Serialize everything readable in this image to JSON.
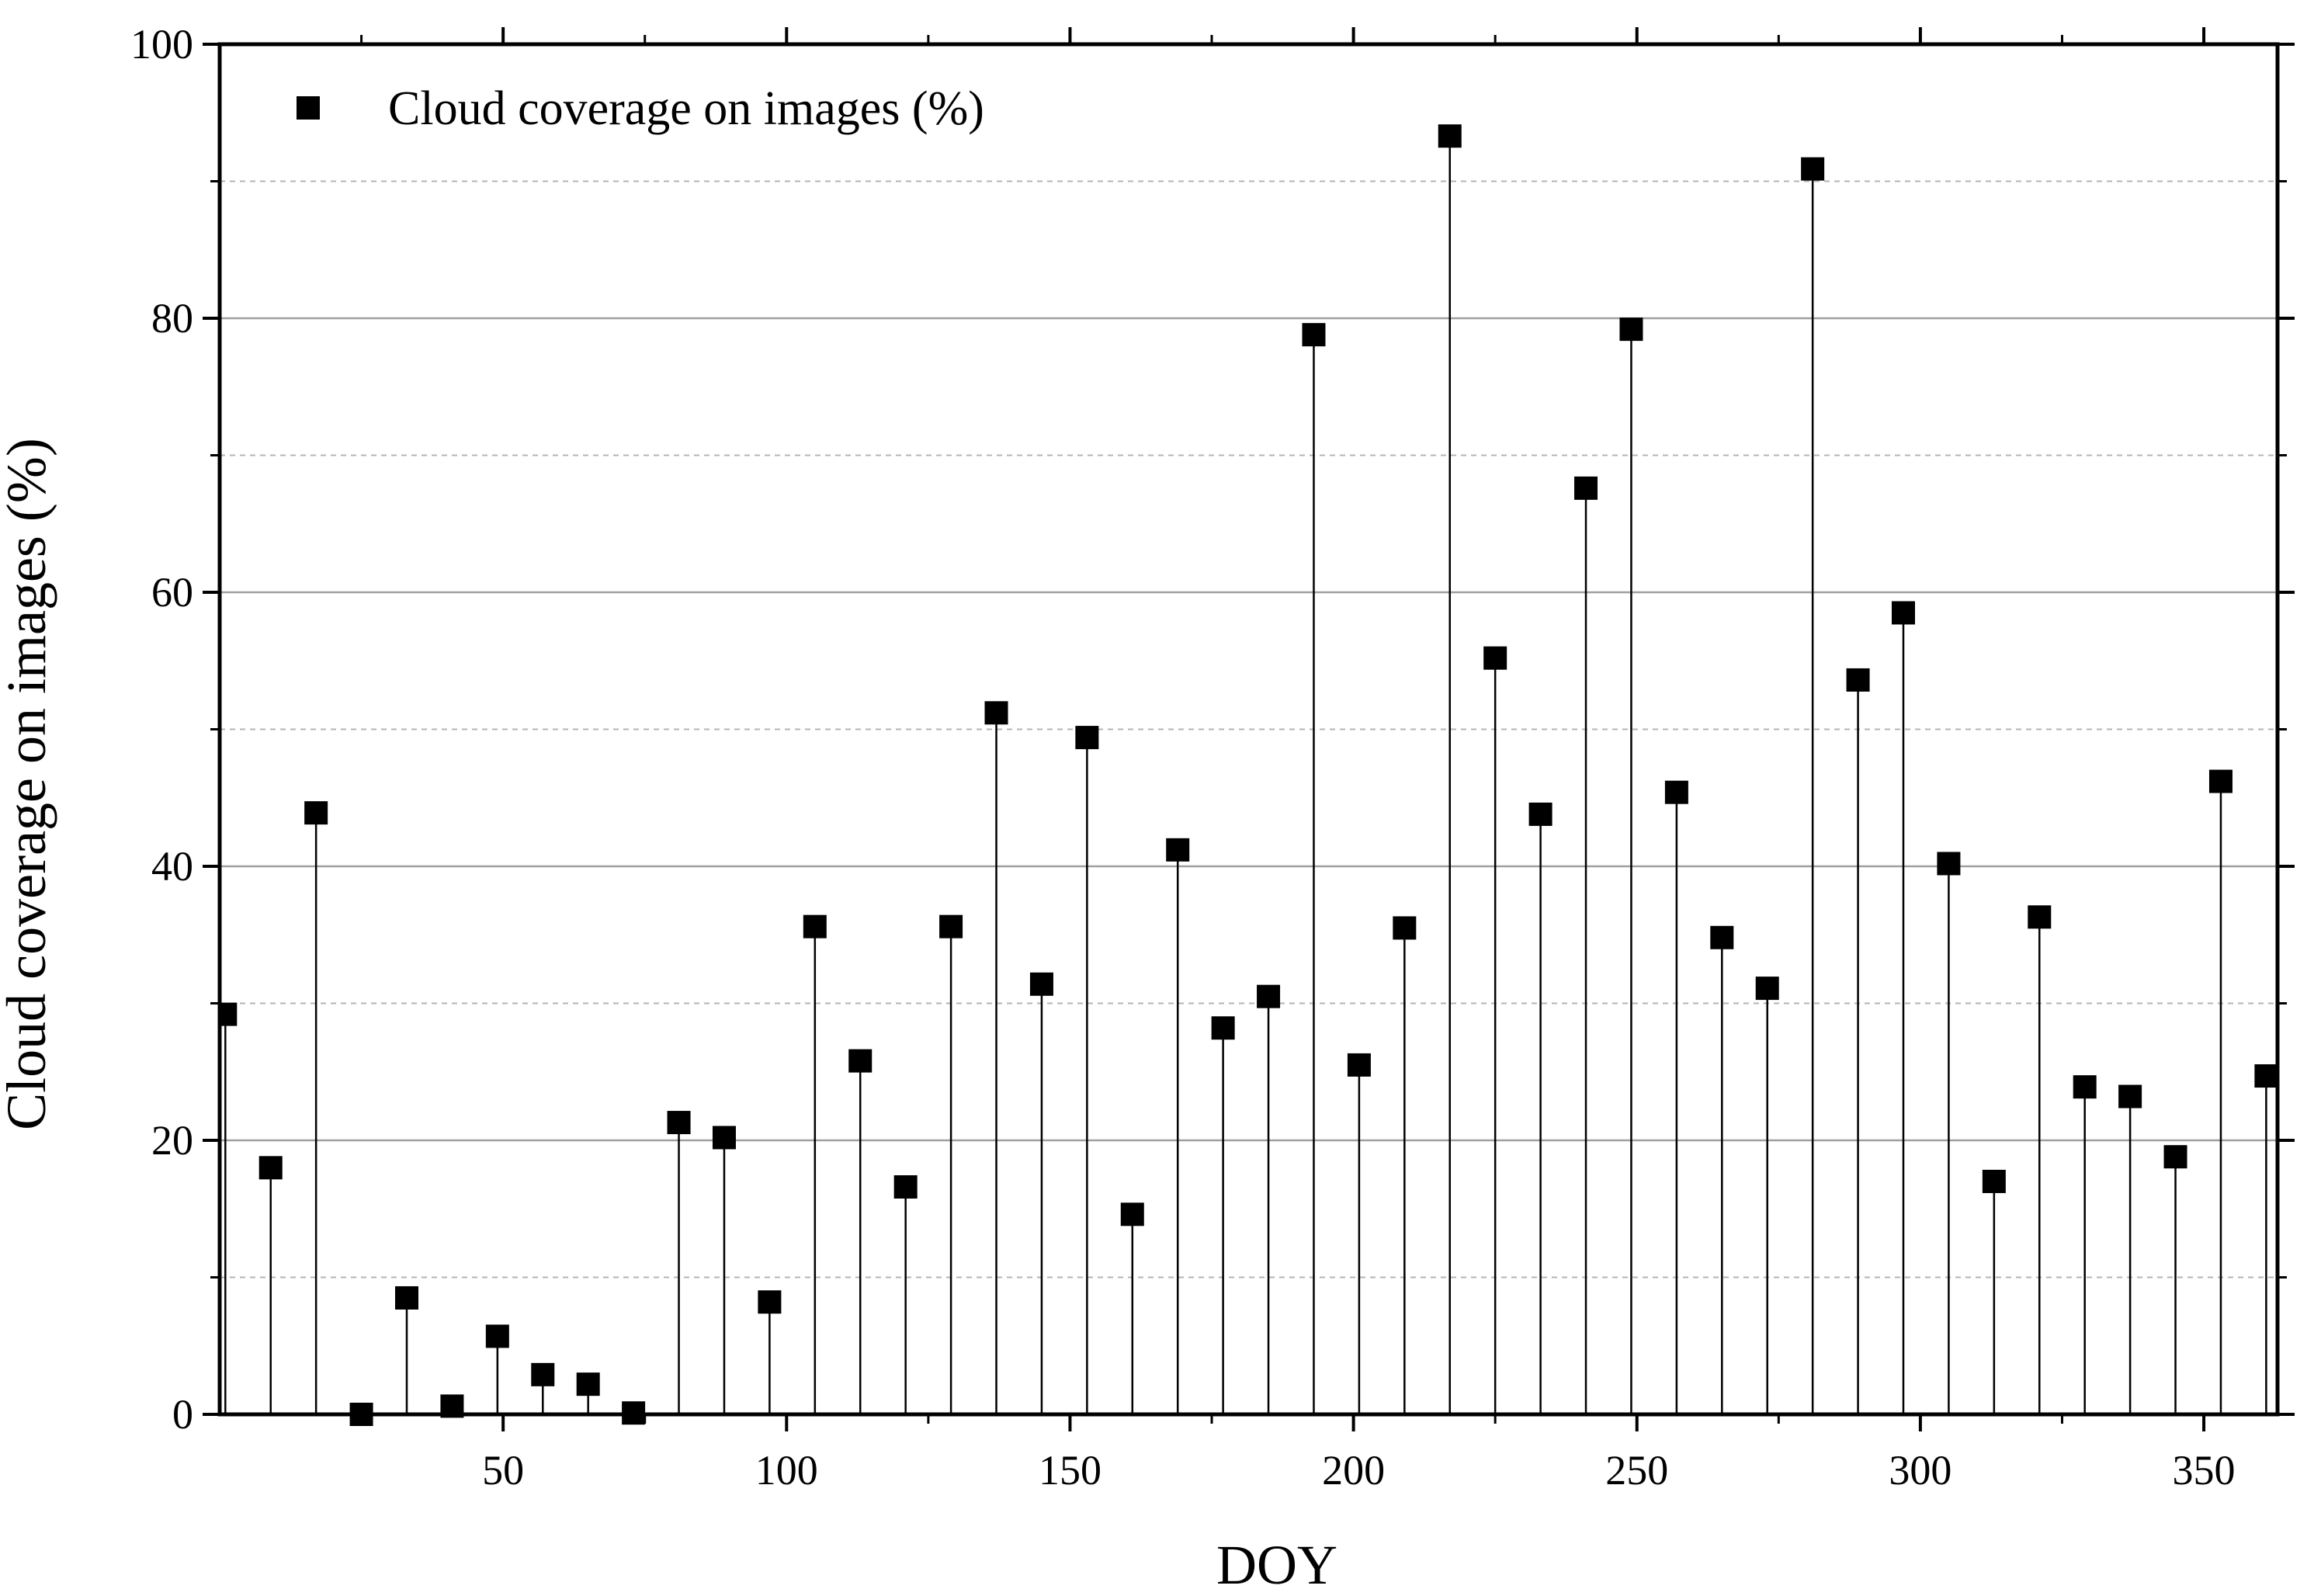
{
  "chart_data": {
    "type": "scatter",
    "style": "stem-with-square-markers",
    "title": "",
    "xlabel": "DOY",
    "ylabel": "Cloud coverage on images (%)",
    "xlim": [
      0,
      363
    ],
    "ylim": [
      0,
      100
    ],
    "xticks": [
      50,
      100,
      150,
      200,
      250,
      300,
      350
    ],
    "yticks": [
      0,
      20,
      40,
      60,
      80,
      100
    ],
    "grid": "major solid, minor dashed (y)",
    "legend_position": "top-left",
    "marker_color": "#000000",
    "series": [
      {
        "name": "Cloud coverage on images (%)",
        "x": [
          1,
          9,
          17,
          25,
          33,
          41,
          49,
          57,
          65,
          73,
          81,
          89,
          97,
          105,
          113,
          121,
          129,
          137,
          145,
          153,
          161,
          169,
          177,
          185,
          193,
          201,
          209,
          217,
          225,
          233,
          241,
          249,
          257,
          265,
          273,
          281,
          289,
          297,
          305,
          313,
          321,
          329,
          337,
          345,
          353,
          361
        ],
        "y": [
          29.2,
          18.0,
          43.9,
          0.0,
          8.5,
          0.6,
          5.7,
          2.9,
          2.2,
          0.1,
          21.3,
          20.2,
          8.2,
          35.6,
          25.8,
          16.6,
          35.6,
          51.2,
          31.4,
          49.4,
          14.6,
          41.2,
          28.2,
          30.5,
          78.8,
          25.5,
          35.5,
          93.3,
          55.2,
          43.8,
          67.6,
          79.2,
          45.4,
          34.8,
          31.1,
          90.9,
          53.6,
          58.5,
          40.2,
          17.0,
          36.3,
          23.9,
          23.2,
          18.8,
          46.2,
          24.7
        ]
      }
    ]
  }
}
